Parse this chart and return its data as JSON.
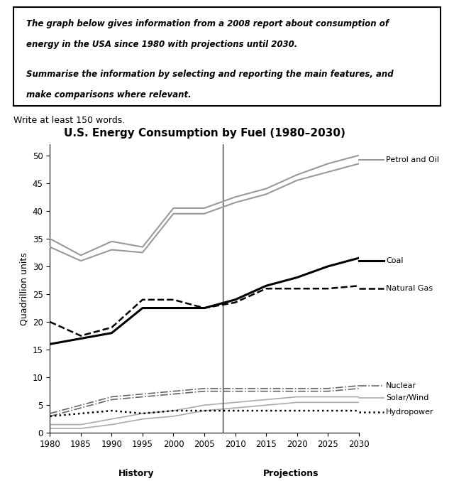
{
  "title": "U.S. Energy Consumption by Fuel (1980–2030)",
  "ylabel": "Quadrillion units",
  "xlabel_history": "History",
  "xlabel_projections": "Projections",
  "write_at_least": "Write at least 150 words.",
  "years": [
    1980,
    1985,
    1990,
    1995,
    2000,
    2005,
    2010,
    2015,
    2020,
    2025,
    2030
  ],
  "petrol_oil_upper": [
    35.0,
    32.0,
    34.5,
    33.5,
    40.5,
    40.5,
    42.5,
    44.0,
    46.5,
    48.5,
    50.0
  ],
  "petrol_oil_lower": [
    33.5,
    31.0,
    33.0,
    32.5,
    39.5,
    39.5,
    41.5,
    43.0,
    45.5,
    47.0,
    48.5
  ],
  "coal": [
    16.0,
    17.0,
    18.0,
    22.5,
    22.5,
    22.5,
    24.0,
    26.5,
    28.0,
    30.0,
    31.5
  ],
  "natural_gas": [
    20.0,
    17.5,
    19.0,
    24.0,
    24.0,
    22.5,
    23.5,
    26.0,
    26.0,
    26.0,
    26.5
  ],
  "nuclear_upper": [
    3.5,
    5.0,
    6.5,
    7.0,
    7.5,
    8.0,
    8.0,
    8.0,
    8.0,
    8.0,
    8.5
  ],
  "nuclear_lower": [
    3.0,
    4.5,
    6.0,
    6.5,
    7.0,
    7.5,
    7.5,
    7.5,
    7.5,
    7.5,
    8.0
  ],
  "solar_wind_upper": [
    1.5,
    1.5,
    2.5,
    3.5,
    4.0,
    5.0,
    5.5,
    6.0,
    6.5,
    6.5,
    6.5
  ],
  "solar_wind_lower": [
    0.8,
    0.8,
    1.5,
    2.5,
    3.0,
    4.0,
    4.5,
    5.0,
    5.5,
    5.5,
    5.5
  ],
  "hydropower": [
    3.0,
    3.5,
    4.0,
    3.5,
    4.0,
    4.0,
    4.0,
    4.0,
    4.0,
    4.0,
    4.0
  ],
  "ylim": [
    0,
    52
  ],
  "yticks": [
    0,
    5,
    10,
    15,
    20,
    25,
    30,
    35,
    40,
    45,
    50
  ],
  "line_color_petrol": "#999999",
  "line_color_coal": "#000000",
  "line_color_natural_gas": "#000000",
  "line_color_nuclear": "#666666",
  "line_color_solar": "#aaaaaa",
  "line_color_hydro": "#000000"
}
